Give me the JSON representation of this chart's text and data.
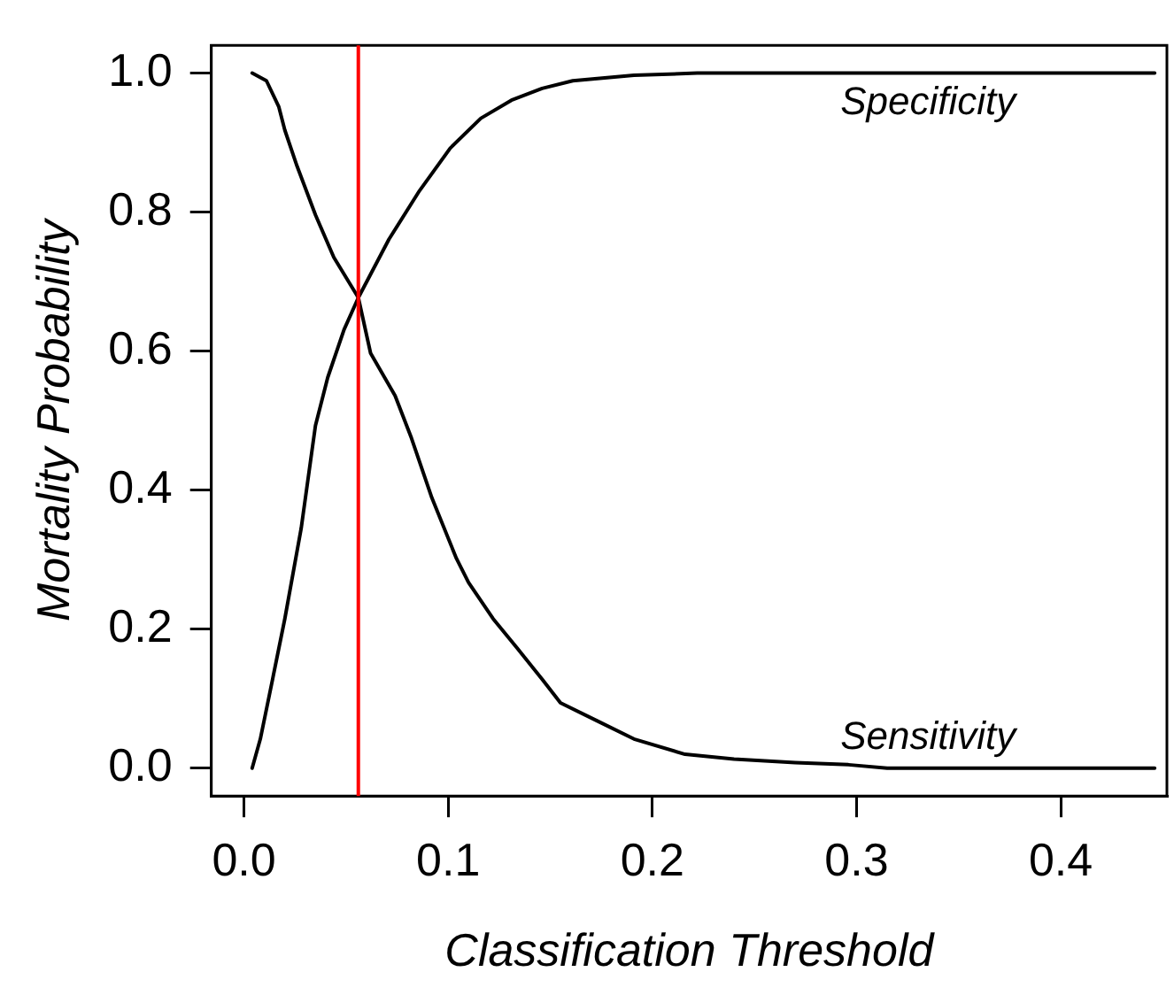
{
  "chart_data": {
    "type": "line",
    "xlabel": "Classification Threshold",
    "ylabel": "Mortality Probability",
    "xlim": [
      -0.016,
      0.452
    ],
    "ylim": [
      -0.04,
      1.04
    ],
    "xticks": [
      {
        "value": 0,
        "label": "0.0"
      },
      0.1,
      0.2,
      0.3,
      0.4
    ],
    "yticks": [
      {
        "value": 0,
        "label": "0.0"
      },
      0.2,
      0.4,
      0.6,
      0.8,
      {
        "value": 1,
        "label": "1.0"
      }
    ],
    "grid": false,
    "legend": false,
    "marker": "none",
    "line_style": "solid",
    "series": [
      {
        "name": "Sensitivity",
        "color": "#000000",
        "x": [
          0.004,
          0.011,
          0.017,
          0.02,
          0.026,
          0.035,
          0.044,
          0.056,
          0.062,
          0.074,
          0.082,
          0.092,
          0.104,
          0.11,
          0.122,
          0.134,
          0.146,
          0.155,
          0.173,
          0.191,
          0.216,
          0.24,
          0.27,
          0.296,
          0.315,
          0.446
        ],
        "values": [
          1.0,
          0.989,
          0.952,
          0.918,
          0.866,
          0.796,
          0.735,
          0.677,
          0.597,
          0.536,
          0.475,
          0.389,
          0.302,
          0.267,
          0.215,
          0.172,
          0.128,
          0.094,
          0.068,
          0.042,
          0.02,
          0.013,
          0.008,
          0.005,
          0.0,
          0.0
        ]
      },
      {
        "name": "Specificity",
        "color": "#000000",
        "x": [
          0.004,
          0.008,
          0.014,
          0.02,
          0.028,
          0.035,
          0.041,
          0.049,
          0.056,
          0.071,
          0.086,
          0.101,
          0.116,
          0.131,
          0.146,
          0.161,
          0.191,
          0.222,
          0.446
        ],
        "values": [
          0.0,
          0.042,
          0.128,
          0.215,
          0.345,
          0.493,
          0.562,
          0.631,
          0.677,
          0.761,
          0.831,
          0.892,
          0.935,
          0.961,
          0.978,
          0.989,
          0.997,
          1.0,
          1.0
        ]
      }
    ],
    "ref_lines": [
      {
        "axis": "x",
        "value": 0.056,
        "color": "#ff0000"
      }
    ]
  }
}
